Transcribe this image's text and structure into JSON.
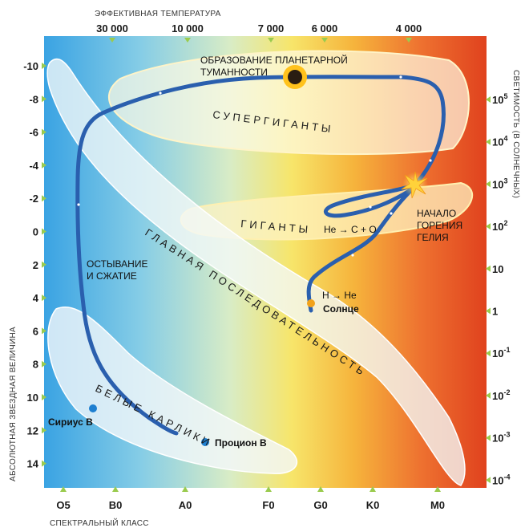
{
  "axes": {
    "top_title": "ЭФФЕКТИВНАЯ ТЕМПЕРАТУРА",
    "top_ticks": [
      "30 000",
      "10 000",
      "7 000",
      "6 000",
      "4 000"
    ],
    "bottom_title": "СПЕКТРАЛЬНЫЙ КЛАСС",
    "bottom_ticks": [
      "O5",
      "B0",
      "A0",
      "F0",
      "G0",
      "K0",
      "M0"
    ],
    "left_title": "АБСОЛЮТНАЯ ЗВЕЗДНАЯ ВЕЛИЧИНА",
    "left_ticks": [
      "-10",
      "-8",
      "-6",
      "-4",
      "-2",
      "0",
      "2",
      "4",
      "6",
      "8",
      "10",
      "12",
      "14"
    ],
    "right_title": "СВЕТИМОСТЬ (В СОЛНЕЧНЫХ)",
    "right_ticks": [
      {
        "base": "10",
        "exp": "5"
      },
      {
        "base": "10",
        "exp": "4"
      },
      {
        "base": "10",
        "exp": "3"
      },
      {
        "base": "10",
        "exp": "2"
      },
      {
        "base": "10",
        "exp": ""
      },
      {
        "base": "1",
        "exp": ""
      },
      {
        "base": "10",
        "exp": "-1"
      },
      {
        "base": "10",
        "exp": "-2"
      },
      {
        "base": "10",
        "exp": "-3"
      },
      {
        "base": "10",
        "exp": "-4"
      }
    ]
  },
  "regions": {
    "supergiants": "СУПЕРГИГАНТЫ",
    "giants": "ГИГАНТЫ",
    "main_sequence": "ГЛАВНАЯ ПОСЛЕДОВАТЕЛЬНОСТЬ",
    "white_dwarfs": "БЕЛЫЕ КАРЛИКИ"
  },
  "annotations": {
    "planetary_nebula_line1": "ОБРАЗОВАНИЕ ПЛАНЕТАРНОЙ",
    "planetary_nebula_line2": "ТУМАННОСТИ",
    "helium_line1": "НАЧАЛО",
    "helium_line2": "ГОРЕНИЯ",
    "helium_line3": "ГЕЛИЯ",
    "he_c_o": "He → C + O",
    "h_he": "H → He",
    "cooling_line1": "ОСТЫВАНИЕ",
    "cooling_line2": "И СЖАТИЕ"
  },
  "stars": {
    "sun": "Солнце",
    "sirius_b": "Сириус В",
    "procyon_b": "Процион В"
  },
  "colors": {
    "track": "#2a5fae",
    "star_marker": "#1e7fd0",
    "sun_marker": "#f2a21a",
    "gradient": [
      "#3aa3e3",
      "#7fcbe6",
      "#c9e6c8",
      "#f5e36a",
      "#f6b13c",
      "#ec6a2a",
      "#e0441f"
    ]
  }
}
